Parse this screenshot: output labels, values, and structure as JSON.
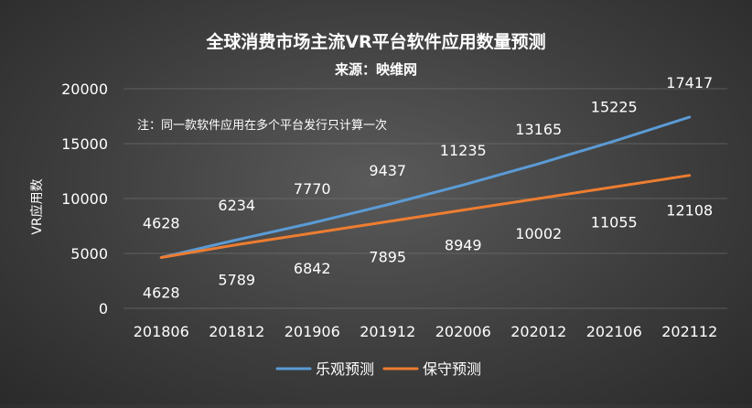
{
  "chart_data": {
    "type": "line",
    "title": "全球消费市场主流VR平台软件应用数量预测",
    "subtitle": "来源：映维网",
    "note": "注：同一款软件应用在多个平台发行只计算一次",
    "xlabel": "",
    "ylabel": "VR应用数",
    "ylim": [
      0,
      20000
    ],
    "yticks": [
      "0",
      "5000",
      "10000",
      "15000",
      "20000"
    ],
    "categories": [
      "201806",
      "201812",
      "201906",
      "201912",
      "202006",
      "202012",
      "202106",
      "202112"
    ],
    "grid": true,
    "legend_position": "bottom",
    "series": [
      {
        "name": "乐观预测",
        "color": "#5b9bd5",
        "values": [
          4628,
          6234,
          7770,
          9437,
          11235,
          13165,
          15225,
          17417
        ]
      },
      {
        "name": "保守预测",
        "color": "#ed7d31",
        "values": [
          4628,
          5789,
          6842,
          7895,
          8949,
          10002,
          11055,
          12108
        ]
      }
    ]
  }
}
